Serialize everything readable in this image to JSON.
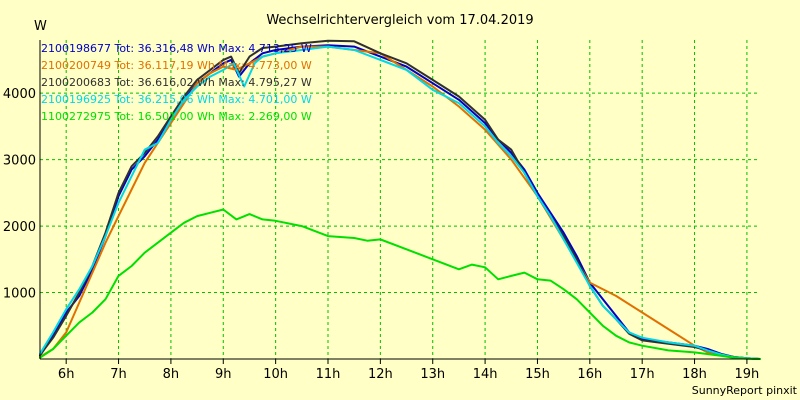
{
  "chart_data": {
    "type": "line",
    "title": "Wechselrichtervergleich vom 17.04.2019",
    "ylabel": "W",
    "xlabel": "",
    "footer": "SunnyReport pinxit",
    "xlim": [
      5.5,
      19.25
    ],
    "ylim": [
      0,
      4800
    ],
    "x_ticks": [
      {
        "value": 6,
        "label": "6h"
      },
      {
        "value": 7,
        "label": "7h"
      },
      {
        "value": 8,
        "label": "8h"
      },
      {
        "value": 9,
        "label": "9h"
      },
      {
        "value": 10,
        "label": "10h"
      },
      {
        "value": 11,
        "label": "11h"
      },
      {
        "value": 12,
        "label": "12h"
      },
      {
        "value": 13,
        "label": "13h"
      },
      {
        "value": 14,
        "label": "14h"
      },
      {
        "value": 15,
        "label": "15h"
      },
      {
        "value": 16,
        "label": "16h"
      },
      {
        "value": 17,
        "label": "17h"
      },
      {
        "value": 18,
        "label": "18h"
      },
      {
        "value": 19,
        "label": "19h"
      }
    ],
    "y_ticks": [
      {
        "value": 1000,
        "label": "1000"
      },
      {
        "value": 2000,
        "label": "2000"
      },
      {
        "value": 3000,
        "label": "3000"
      },
      {
        "value": 4000,
        "label": "4000"
      }
    ],
    "grid": true,
    "legend_position": "top-left",
    "series": [
      {
        "name": "2100198677 Tot: 36.316,48 Wh Max: 4.713,25 W",
        "color": "#0000c8",
        "x": [
          5.5,
          5.75,
          6,
          6.25,
          6.5,
          6.75,
          7,
          7.25,
          7.5,
          7.75,
          8,
          8.25,
          8.5,
          8.75,
          9,
          9.15,
          9.3,
          9.5,
          9.75,
          10,
          10.5,
          11,
          11.5,
          12,
          12.5,
          13,
          13.5,
          14,
          14.25,
          14.5,
          14.75,
          15,
          15.25,
          15.5,
          15.75,
          16,
          16.25,
          16.5,
          16.75,
          17,
          17.5,
          18,
          18.25,
          18.5,
          18.75,
          19,
          19.25
        ],
        "y": [
          50,
          350,
          700,
          950,
          1350,
          1850,
          2450,
          2850,
          3050,
          3300,
          3600,
          3900,
          4150,
          4300,
          4450,
          4500,
          4250,
          4450,
          4600,
          4650,
          4700,
          4720,
          4700,
          4550,
          4400,
          4150,
          3900,
          3550,
          3300,
          3100,
          2850,
          2500,
          2200,
          1900,
          1550,
          1150,
          900,
          650,
          400,
          300,
          250,
          200,
          150,
          80,
          30,
          10,
          0
        ]
      },
      {
        "name": "2100200749 Tot: 36.117,19 Wh Max: 4.773,00 W",
        "color": "#e07000",
        "x": [
          5.5,
          5.75,
          6,
          6.25,
          6.5,
          6.75,
          7,
          7.25,
          7.5,
          7.75,
          8,
          8.25,
          8.5,
          8.75,
          9,
          9.25,
          9.5,
          9.75,
          10,
          10.5,
          11,
          11.5,
          12,
          12.5,
          13,
          13.5,
          14,
          14.5,
          15,
          15.5,
          16,
          16.5,
          17,
          17.5,
          18,
          18.25,
          18.5,
          18.75,
          19,
          19.25
        ],
        "y": [
          30,
          150,
          400,
          850,
          1300,
          1750,
          2150,
          2550,
          2950,
          3250,
          3550,
          3850,
          4150,
          4300,
          4400,
          4350,
          4450,
          4550,
          4600,
          4700,
          4700,
          4650,
          4600,
          4350,
          4100,
          3800,
          3450,
          3000,
          2450,
          1800,
          1150,
          950,
          700,
          450,
          200,
          100,
          60,
          30,
          10,
          0
        ]
      },
      {
        "name": "2100200683 Tot: 36.616,02 Wh Max: 4.795,27 W",
        "color": "#303030",
        "x": [
          5.5,
          5.75,
          6,
          6.25,
          6.5,
          6.75,
          7,
          7.25,
          7.5,
          7.75,
          8,
          8.25,
          8.5,
          8.75,
          9,
          9.15,
          9.3,
          9.5,
          9.75,
          10,
          10.5,
          11,
          11.5,
          12,
          12.5,
          13,
          13.5,
          14,
          14.25,
          14.5,
          14.75,
          15,
          15.25,
          15.5,
          15.75,
          16,
          16.25,
          16.5,
          16.75,
          17,
          17.5,
          18,
          18.25,
          18.5,
          18.75,
          19,
          19.25
        ],
        "y": [
          60,
          320,
          650,
          1000,
          1400,
          1900,
          2500,
          2900,
          3100,
          3350,
          3650,
          3950,
          4200,
          4350,
          4500,
          4550,
          4300,
          4550,
          4680,
          4700,
          4750,
          4790,
          4780,
          4600,
          4450,
          4200,
          3950,
          3600,
          3300,
          3150,
          2800,
          2450,
          2150,
          1850,
          1500,
          1100,
          800,
          600,
          380,
          280,
          230,
          180,
          130,
          70,
          30,
          10,
          0
        ]
      },
      {
        "name": "2100196925 Tot: 36.215,06 Wh Max: 4.701,00 W",
        "color": "#00d8e8",
        "x": [
          5.5,
          5.75,
          6,
          6.25,
          6.5,
          6.75,
          7,
          7.25,
          7.5,
          7.75,
          8,
          8.25,
          8.5,
          8.75,
          9,
          9.2,
          9.4,
          9.6,
          9.75,
          10,
          10.5,
          11,
          11.5,
          12,
          12.5,
          13,
          13.5,
          14,
          14.25,
          14.5,
          14.75,
          15,
          15.25,
          15.5,
          15.75,
          16,
          16.25,
          16.5,
          16.75,
          17,
          17.5,
          18,
          18.25,
          18.5,
          18.75,
          19,
          19.25
        ],
        "y": [
          80,
          400,
          750,
          1050,
          1400,
          1850,
          2350,
          2750,
          3150,
          3250,
          3600,
          3900,
          4100,
          4250,
          4350,
          4450,
          4100,
          4450,
          4550,
          4600,
          4650,
          4700,
          4650,
          4500,
          4350,
          4050,
          3850,
          3500,
          3250,
          3050,
          2800,
          2450,
          2150,
          1800,
          1450,
          1100,
          800,
          600,
          400,
          320,
          250,
          200,
          130,
          70,
          25,
          10,
          0
        ]
      },
      {
        "name": "1100272975 Tot: 16.501,00 Wh Max: 2.269,00 W",
        "color": "#00e000",
        "x": [
          5.5,
          5.75,
          6,
          6.25,
          6.5,
          6.75,
          7,
          7.25,
          7.5,
          7.75,
          8,
          8.25,
          8.5,
          8.75,
          9,
          9.25,
          9.5,
          9.75,
          10,
          10.5,
          11,
          11.5,
          11.75,
          12,
          12.5,
          13,
          13.5,
          13.75,
          14,
          14.25,
          14.5,
          14.75,
          15,
          15.25,
          15.5,
          15.75,
          16,
          16.25,
          16.5,
          16.75,
          17,
          17.5,
          18,
          18.5,
          18.75,
          19,
          19.25
        ],
        "y": [
          20,
          150,
          350,
          550,
          700,
          900,
          1250,
          1400,
          1600,
          1750,
          1900,
          2050,
          2150,
          2200,
          2250,
          2100,
          2180,
          2100,
          2080,
          2000,
          1850,
          1820,
          1780,
          1800,
          1650,
          1500,
          1350,
          1420,
          1380,
          1200,
          1250,
          1300,
          1200,
          1180,
          1050,
          900,
          700,
          500,
          350,
          250,
          200,
          130,
          100,
          50,
          20,
          5,
          0
        ]
      }
    ]
  }
}
